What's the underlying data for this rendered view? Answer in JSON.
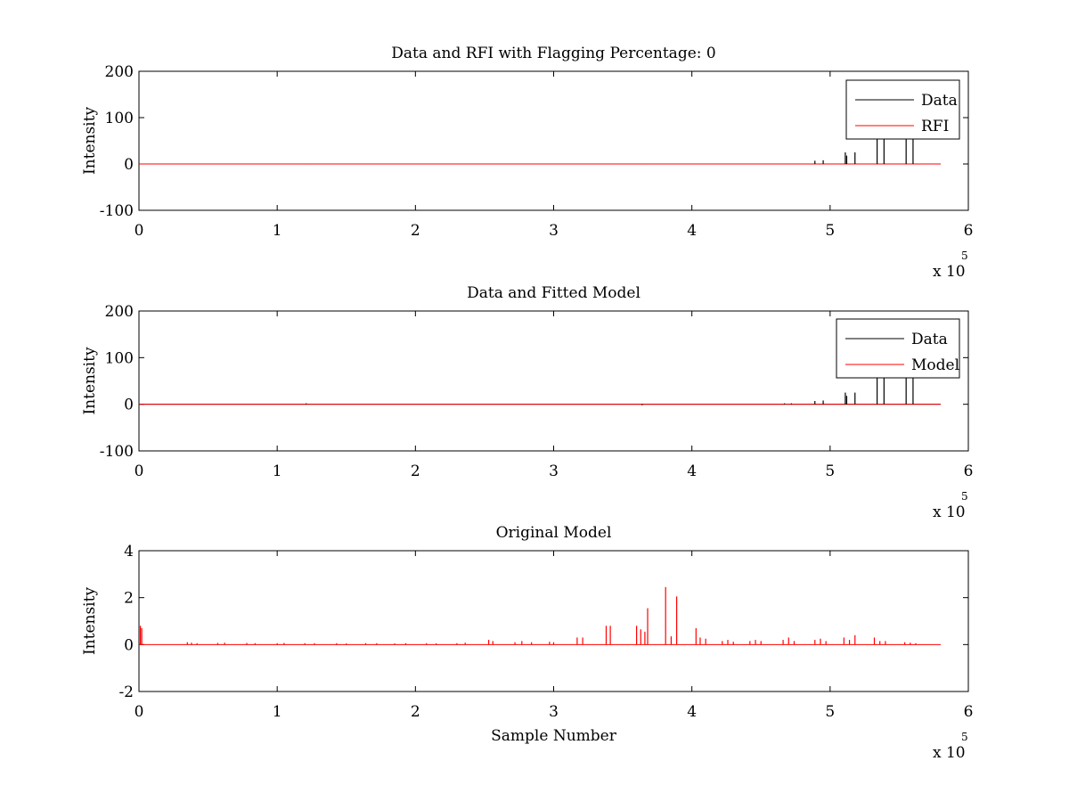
{
  "chart_data": [
    {
      "type": "line",
      "title": "Data and RFI with Flagging Percentage: 0",
      "xlabel": "",
      "ylabel": "Intensity",
      "xlim": [
        0,
        6
      ],
      "ylim": [
        -100,
        200
      ],
      "xticks": [
        0,
        1,
        2,
        3,
        4,
        5,
        6
      ],
      "yticks": [
        -100,
        0,
        100,
        200
      ],
      "x_multiplier": {
        "base": "x 10",
        "exponent": "5"
      },
      "legend": {
        "position": "top-right",
        "entries": [
          {
            "name": "Data",
            "color": "#000000"
          },
          {
            "name": "RFI",
            "color": "#ff0000"
          }
        ]
      },
      "baseline": {
        "x_start": 0,
        "x_end": 5.8,
        "y": 0
      },
      "series": [
        {
          "name": "Data",
          "color": "#000000",
          "spikes": [
            {
              "x": 4.89,
              "y": 7
            },
            {
              "x": 4.95,
              "y": 8
            },
            {
              "x": 5.11,
              "y": 25
            },
            {
              "x": 5.12,
              "y": 18
            },
            {
              "x": 5.18,
              "y": 25
            },
            {
              "x": 5.34,
              "y": 130
            },
            {
              "x": 5.39,
              "y": 130
            },
            {
              "x": 5.55,
              "y": 130
            },
            {
              "x": 5.6,
              "y": 130
            }
          ]
        },
        {
          "name": "RFI",
          "color": "#ff0000",
          "spikes": [
            {
              "x": 1.2,
              "y": 1
            },
            {
              "x": 3.65,
              "y": -1
            }
          ]
        }
      ]
    },
    {
      "type": "line",
      "title": "Data and Fitted Model",
      "xlabel": "",
      "ylabel": "Intensity",
      "xlim": [
        0,
        6
      ],
      "ylim": [
        -100,
        200
      ],
      "xticks": [
        0,
        1,
        2,
        3,
        4,
        5,
        6
      ],
      "yticks": [
        -100,
        0,
        100,
        200
      ],
      "x_multiplier": {
        "base": "x 10",
        "exponent": "5"
      },
      "legend": {
        "position": "top-right",
        "entries": [
          {
            "name": "Data",
            "color": "#000000"
          },
          {
            "name": "Model",
            "color": "#ff0000"
          }
        ]
      },
      "baseline": {
        "x_start": 0,
        "x_end": 5.8,
        "y": 0
      },
      "series": [
        {
          "name": "Data",
          "color": "#000000",
          "spikes": [
            {
              "x": 1.21,
              "y": 2
            },
            {
              "x": 3.64,
              "y": -2
            },
            {
              "x": 4.67,
              "y": 2
            },
            {
              "x": 4.72,
              "y": 2
            },
            {
              "x": 4.89,
              "y": 7
            },
            {
              "x": 4.95,
              "y": 8
            },
            {
              "x": 5.11,
              "y": 25
            },
            {
              "x": 5.12,
              "y": 18
            },
            {
              "x": 5.18,
              "y": 25
            },
            {
              "x": 5.34,
              "y": 130
            },
            {
              "x": 5.39,
              "y": 130
            },
            {
              "x": 5.55,
              "y": 130
            },
            {
              "x": 5.6,
              "y": 130
            }
          ]
        },
        {
          "name": "Model",
          "color": "#ff0000",
          "spikes": []
        }
      ]
    },
    {
      "type": "line",
      "title": "Original Model",
      "xlabel": "Sample Number",
      "ylabel": "Intensity",
      "xlim": [
        0,
        6
      ],
      "ylim": [
        -2,
        4
      ],
      "xticks": [
        0,
        1,
        2,
        3,
        4,
        5,
        6
      ],
      "yticks": [
        -2,
        0,
        2,
        4
      ],
      "x_multiplier": {
        "base": "x 10",
        "exponent": "5"
      },
      "baseline": {
        "x_start": 0,
        "x_end": 5.8,
        "y": 0
      },
      "series": [
        {
          "color": "#ff0000",
          "spikes": [
            {
              "x": 0.01,
              "y": 0.8
            },
            {
              "x": 0.02,
              "y": 0.7
            },
            {
              "x": 0.35,
              "y": 0.1
            },
            {
              "x": 0.38,
              "y": 0.08
            },
            {
              "x": 0.42,
              "y": 0.06
            },
            {
              "x": 0.57,
              "y": 0.07
            },
            {
              "x": 0.62,
              "y": 0.08
            },
            {
              "x": 0.78,
              "y": 0.07
            },
            {
              "x": 0.84,
              "y": 0.06
            },
            {
              "x": 1.0,
              "y": 0.06
            },
            {
              "x": 1.05,
              "y": 0.07
            },
            {
              "x": 1.2,
              "y": 0.06
            },
            {
              "x": 1.27,
              "y": 0.06
            },
            {
              "x": 1.43,
              "y": 0.06
            },
            {
              "x": 1.5,
              "y": 0.05
            },
            {
              "x": 1.64,
              "y": 0.06
            },
            {
              "x": 1.72,
              "y": 0.06
            },
            {
              "x": 1.85,
              "y": 0.05
            },
            {
              "x": 1.93,
              "y": 0.06
            },
            {
              "x": 2.08,
              "y": 0.06
            },
            {
              "x": 2.15,
              "y": 0.05
            },
            {
              "x": 2.3,
              "y": 0.06
            },
            {
              "x": 2.36,
              "y": 0.08
            },
            {
              "x": 2.53,
              "y": 0.2
            },
            {
              "x": 2.56,
              "y": 0.15
            },
            {
              "x": 2.72,
              "y": 0.1
            },
            {
              "x": 2.77,
              "y": 0.15
            },
            {
              "x": 2.84,
              "y": 0.1
            },
            {
              "x": 2.97,
              "y": 0.12
            },
            {
              "x": 3.0,
              "y": 0.1
            },
            {
              "x": 3.17,
              "y": 0.3
            },
            {
              "x": 3.21,
              "y": 0.3
            },
            {
              "x": 3.38,
              "y": 0.8
            },
            {
              "x": 3.41,
              "y": 0.8
            },
            {
              "x": 3.6,
              "y": 0.8
            },
            {
              "x": 3.63,
              "y": 0.65
            },
            {
              "x": 3.66,
              "y": 0.55
            },
            {
              "x": 3.68,
              "y": 1.55
            },
            {
              "x": 3.81,
              "y": 2.45
            },
            {
              "x": 3.85,
              "y": 0.35
            },
            {
              "x": 3.89,
              "y": 2.05
            },
            {
              "x": 4.03,
              "y": 0.7
            },
            {
              "x": 4.06,
              "y": 0.3
            },
            {
              "x": 4.1,
              "y": 0.25
            },
            {
              "x": 4.22,
              "y": 0.15
            },
            {
              "x": 4.26,
              "y": 0.2
            },
            {
              "x": 4.3,
              "y": 0.12
            },
            {
              "x": 4.42,
              "y": 0.15
            },
            {
              "x": 4.46,
              "y": 0.2
            },
            {
              "x": 4.5,
              "y": 0.15
            },
            {
              "x": 4.66,
              "y": 0.2
            },
            {
              "x": 4.7,
              "y": 0.3
            },
            {
              "x": 4.74,
              "y": 0.15
            },
            {
              "x": 4.89,
              "y": 0.2
            },
            {
              "x": 4.93,
              "y": 0.25
            },
            {
              "x": 4.97,
              "y": 0.15
            },
            {
              "x": 5.1,
              "y": 0.3
            },
            {
              "x": 5.14,
              "y": 0.2
            },
            {
              "x": 5.18,
              "y": 0.4
            },
            {
              "x": 5.32,
              "y": 0.3
            },
            {
              "x": 5.36,
              "y": 0.15
            },
            {
              "x": 5.4,
              "y": 0.15
            },
            {
              "x": 5.54,
              "y": 0.1
            },
            {
              "x": 5.58,
              "y": 0.08
            },
            {
              "x": 5.62,
              "y": 0.06
            }
          ]
        }
      ]
    }
  ]
}
